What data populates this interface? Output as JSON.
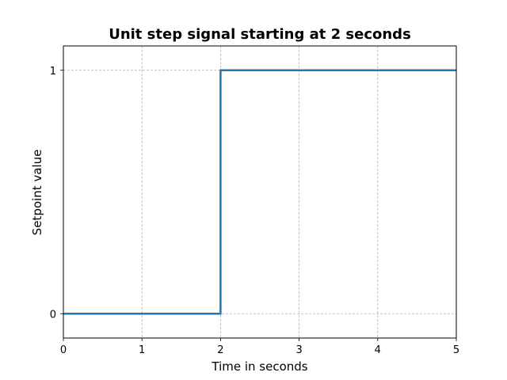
{
  "chart_data": {
    "type": "line",
    "title": "Unit step signal starting at 2 seconds",
    "xlabel": "Time in seconds",
    "ylabel": "Setpoint value",
    "xlim": [
      0,
      5
    ],
    "ylim": [
      -0.1,
      1.1
    ],
    "xticks": [
      0,
      1,
      2,
      3,
      4,
      5
    ],
    "yticks": [
      0,
      1
    ],
    "grid": true,
    "legend": "none",
    "series": [
      {
        "color": "#1f77b4",
        "step": "post",
        "x": [
          0,
          2,
          2,
          5
        ],
        "y": [
          0,
          0,
          1,
          1
        ]
      }
    ]
  }
}
